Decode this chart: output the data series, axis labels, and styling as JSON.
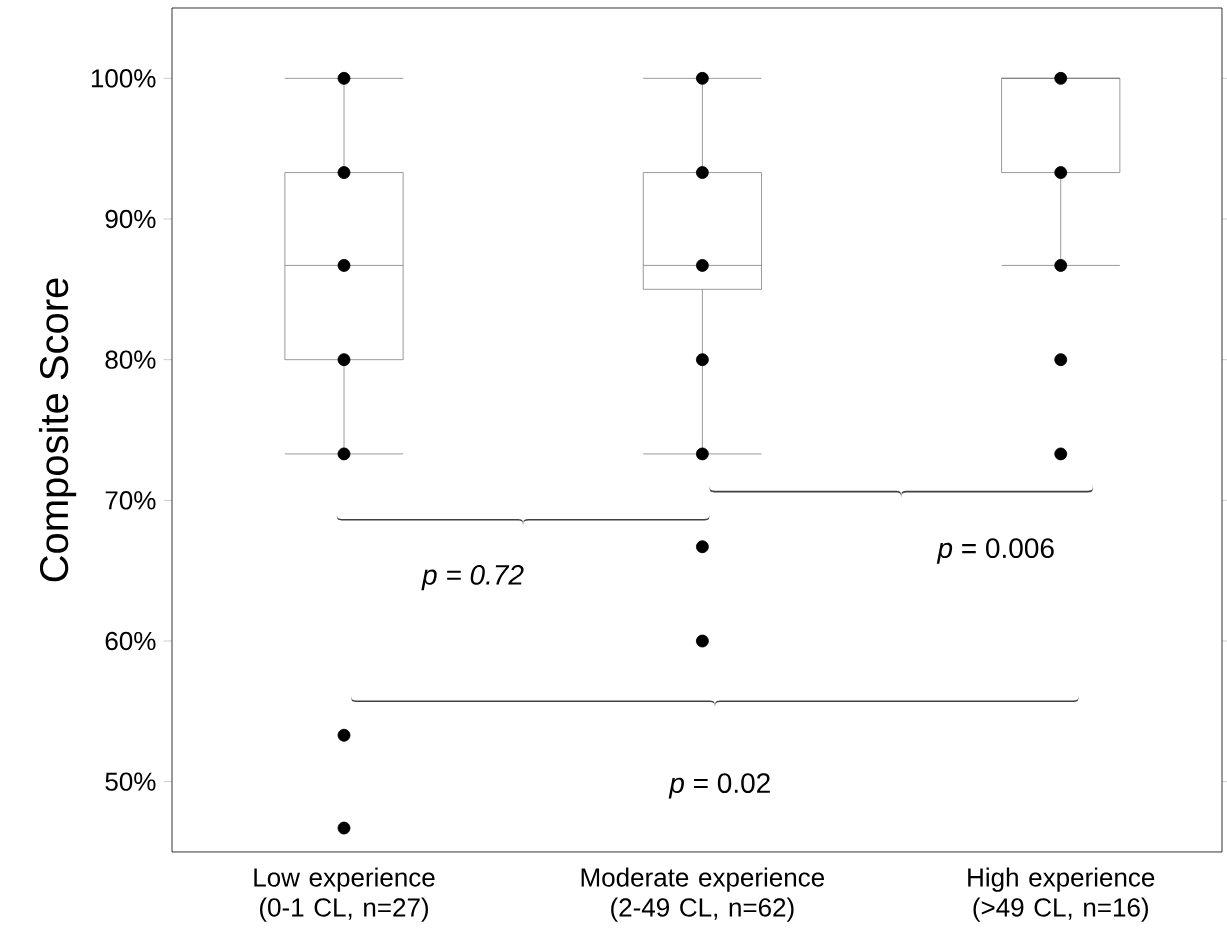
{
  "chart_data": {
    "type": "box",
    "ylabel": "Composite Score",
    "categories": [
      "Low experience (0-1 CL, n=27)",
      "Moderate experience (2-49 CL, n=62)",
      "High experience (>49 CL, n=16)"
    ],
    "boxes": [
      {
        "low": 73.3,
        "q1": 80,
        "median": 86.7,
        "q3": 93.3,
        "high": 100
      },
      {
        "low": 73.3,
        "q1": 85,
        "median": 86.7,
        "q3": 93.3,
        "high": 100
      },
      {
        "low": 86.7,
        "q1": 93.3,
        "median": 100,
        "q3": 100,
        "high": 100
      }
    ],
    "series": [
      {
        "type": "scatter",
        "color": "#000000",
        "marker": "circle",
        "x": [
          "Low experience (0-1 CL, n=27)",
          "Low experience (0-1 CL, n=27)",
          "Low experience (0-1 CL, n=27)",
          "Low experience (0-1 CL, n=27)",
          "Low experience (0-1 CL, n=27)",
          "Low experience (0-1 CL, n=27)",
          "Low experience (0-1 CL, n=27)",
          "Moderate experience (2-49 CL, n=62)",
          "Moderate experience (2-49 CL, n=62)",
          "Moderate experience (2-49 CL, n=62)",
          "Moderate experience (2-49 CL, n=62)",
          "Moderate experience (2-49 CL, n=62)",
          "Moderate experience (2-49 CL, n=62)",
          "Moderate experience (2-49 CL, n=62)",
          "High experience (>49 CL, n=16)",
          "High experience (>49 CL, n=16)",
          "High experience (>49 CL, n=16)",
          "High experience (>49 CL, n=16)",
          "High experience (>49 CL, n=16)"
        ],
        "values": [
          100,
          93.3,
          86.7,
          80,
          73.3,
          53.3,
          46.7,
          100,
          93.3,
          86.7,
          80,
          73.3,
          66.7,
          60,
          100,
          93.3,
          86.7,
          80,
          73.3
        ]
      }
    ],
    "color": "#808080",
    "ylim": [
      45,
      105
    ],
    "yticks": [
      {
        "value": 50,
        "label": "50%"
      },
      {
        "value": 60,
        "label": "60%"
      },
      {
        "value": 70,
        "label": "70%"
      },
      {
        "value": 80,
        "label": "80%"
      },
      {
        "value": 90,
        "label": "90%"
      },
      {
        "value": 100,
        "label": "100%"
      }
    ],
    "annotations": [
      "*p = 0.72*",
      "*p* = 0.006",
      "*p* = 0.02"
    ],
    "grid": false
  }
}
